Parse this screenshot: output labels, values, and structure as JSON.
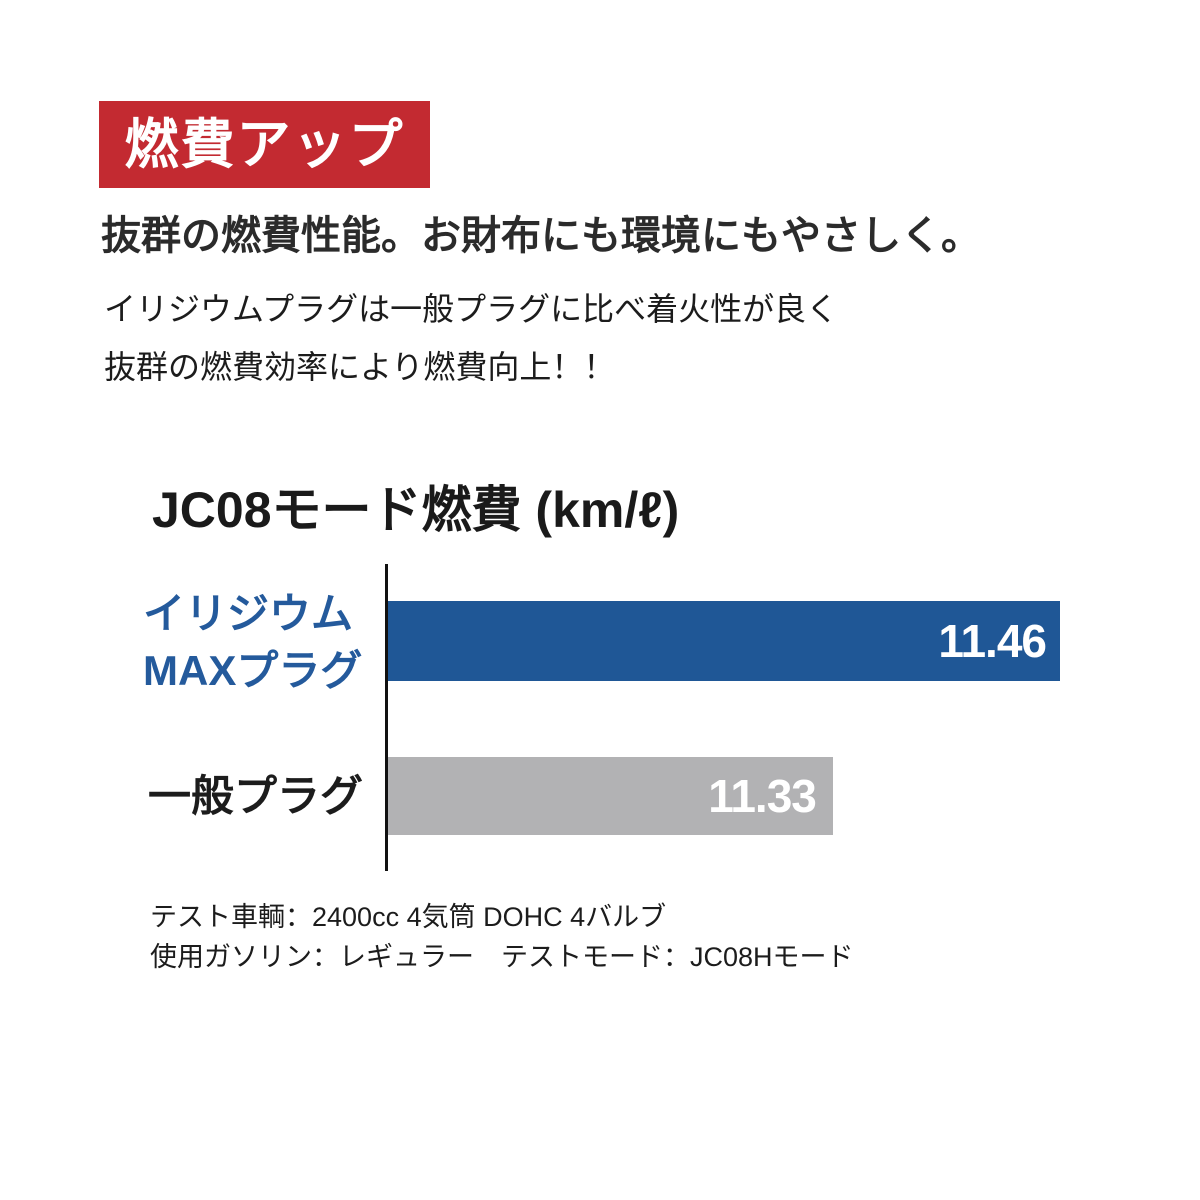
{
  "badge": {
    "label": "燃費アップ",
    "background": "#C32A31",
    "text_color": "#FFFFFF"
  },
  "headline": "抜群の燃費性能。お財布にも環境にもやさしく。",
  "description": {
    "line1": "イリジウムプラグは一般プラグに比べ着火性が良く",
    "line2": "抜群の燃費効率により燃費向上！！"
  },
  "chart_data": {
    "type": "bar",
    "orientation": "horizontal",
    "title": "JC08モード燃費 (km/ℓ)",
    "unit": "km/ℓ",
    "categories": [
      "イリジウムMAXプラグ",
      "一般プラグ"
    ],
    "categories_display": [
      "イリジウム\nMAXプラグ",
      "一般プラグ"
    ],
    "values": [
      11.46,
      11.33
    ],
    "value_labels": [
      "11.46",
      "11.33"
    ],
    "bar_colors": [
      "#1F5796",
      "#B2B2B4"
    ],
    "label_colors": [
      "#245A9C",
      "#1C1C1C"
    ],
    "value_text_color": "#FFFFFF",
    "bar_widths_pct": [
      100,
      66.2
    ],
    "axis_line_color": "#111111",
    "grid": false,
    "legend": false
  },
  "footnotes": {
    "line1": "テスト車輌：2400cc 4気筒 DOHC 4バルブ",
    "line2": "使用ガソリン：レギュラー　テストモード：JC08Hモード"
  }
}
